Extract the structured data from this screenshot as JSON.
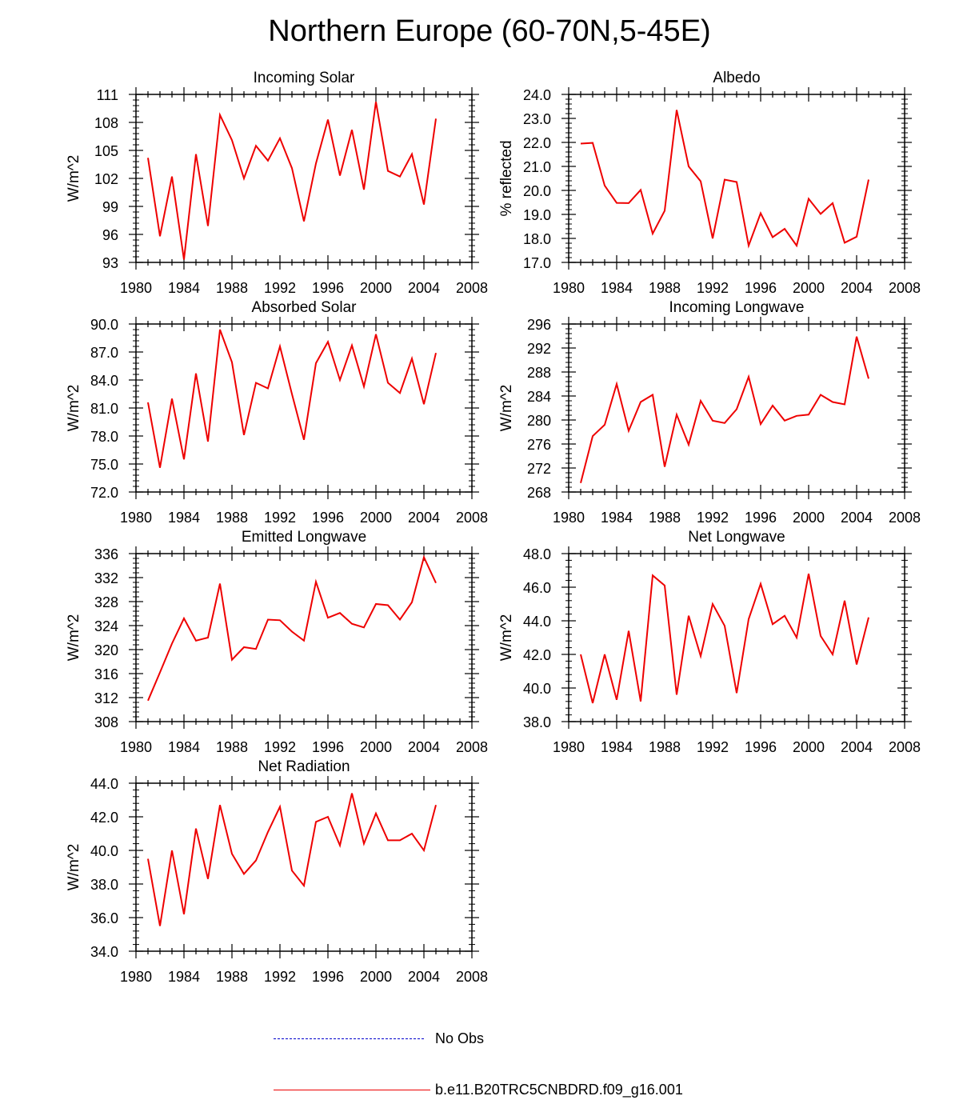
{
  "title": "Northern Europe (60-70N,5-45E)",
  "colors": {
    "model": "#ee0000",
    "obs": "#0000cc"
  },
  "legend": [
    {
      "label": "No Obs",
      "style": "dashed",
      "color": "#0000cc"
    },
    {
      "label": "b.e11.B20TRC5CNBDRD.f09_g16.001",
      "style": "solid",
      "color": "#ee0000"
    }
  ],
  "chart_data": [
    {
      "type": "line",
      "title": "Incoming Solar",
      "ylabel": "W/m^2",
      "xlim": [
        1980,
        2008
      ],
      "ylim": [
        93,
        111
      ],
      "xticks": [
        "1980",
        "1984",
        "1988",
        "1992",
        "1996",
        "2000",
        "2004",
        "2008"
      ],
      "yticks": [
        "93",
        "96",
        "99",
        "102",
        "105",
        "108",
        "111"
      ],
      "x": [
        1981,
        1982,
        1983,
        1984,
        1985,
        1986,
        1987,
        1988,
        1989,
        1990,
        1991,
        1992,
        1993,
        1994,
        1995,
        1996,
        1997,
        1998,
        1999,
        2000,
        2001,
        2002,
        2003,
        2004,
        2005
      ],
      "series": [
        {
          "color": "#ee0000",
          "values": [
            104.2,
            95.8,
            102.2,
            93.3,
            104.6,
            96.9,
            108.8,
            106.1,
            102.0,
            105.5,
            103.9,
            106.3,
            103.1,
            97.4,
            103.6,
            108.3,
            102.3,
            107.2,
            100.8,
            110.2,
            102.8,
            102.2,
            104.6,
            99.2,
            108.4
          ]
        }
      ]
    },
    {
      "type": "line",
      "title": "Albedo",
      "ylabel": "% reflected",
      "xlim": [
        1980,
        2008
      ],
      "ylim": [
        17,
        24
      ],
      "xticks": [
        "1980",
        "1984",
        "1988",
        "1992",
        "1996",
        "2000",
        "2004",
        "2008"
      ],
      "yticks": [
        "17.0",
        "18.0",
        "19.0",
        "20.0",
        "21.0",
        "22.0",
        "23.0",
        "24.0"
      ],
      "x": [
        1981,
        1982,
        1983,
        1984,
        1985,
        1986,
        1987,
        1988,
        1989,
        1990,
        1991,
        1992,
        1993,
        1994,
        1995,
        1996,
        1997,
        1998,
        1999,
        2000,
        2001,
        2002,
        2003,
        2004,
        2005
      ],
      "series": [
        {
          "color": "#ee0000",
          "values": [
            21.95,
            21.98,
            20.2,
            19.48,
            19.47,
            20.02,
            18.2,
            19.15,
            23.35,
            21.0,
            20.38,
            18.0,
            20.45,
            20.35,
            17.7,
            19.05,
            18.05,
            18.4,
            17.7,
            19.65,
            19.02,
            19.47,
            17.82,
            18.07,
            20.45
          ]
        }
      ]
    },
    {
      "type": "line",
      "title": "Absorbed Solar",
      "ylabel": "W/m^2",
      "xlim": [
        1980,
        2008
      ],
      "ylim": [
        72,
        90
      ],
      "xticks": [
        "1980",
        "1984",
        "1988",
        "1992",
        "1996",
        "2000",
        "2004",
        "2008"
      ],
      "yticks": [
        "72.0",
        "75.0",
        "78.0",
        "81.0",
        "84.0",
        "87.0",
        "90.0"
      ],
      "x": [
        1981,
        1982,
        1983,
        1984,
        1985,
        1986,
        1987,
        1988,
        1989,
        1990,
        1991,
        1992,
        1993,
        1994,
        1995,
        1996,
        1997,
        1998,
        1999,
        2000,
        2001,
        2002,
        2003,
        2004,
        2005
      ],
      "series": [
        {
          "color": "#ee0000",
          "values": [
            81.6,
            74.6,
            82.0,
            75.5,
            84.7,
            77.4,
            89.4,
            85.9,
            78.1,
            83.7,
            83.1,
            87.6,
            82.5,
            77.6,
            85.8,
            88.1,
            84.0,
            87.7,
            83.3,
            88.9,
            83.7,
            82.6,
            86.3,
            81.4,
            86.9
          ]
        }
      ]
    },
    {
      "type": "line",
      "title": "Incoming Longwave",
      "ylabel": "W/m^2",
      "xlim": [
        1980,
        2008
      ],
      "ylim": [
        268,
        296
      ],
      "xticks": [
        "1980",
        "1984",
        "1988",
        "1992",
        "1996",
        "2000",
        "2004",
        "2008"
      ],
      "yticks": [
        "268",
        "272",
        "276",
        "280",
        "284",
        "288",
        "292",
        "296"
      ],
      "x": [
        1981,
        1982,
        1983,
        1984,
        1985,
        1986,
        1987,
        1988,
        1989,
        1990,
        1991,
        1992,
        1993,
        1994,
        1995,
        1996,
        1997,
        1998,
        1999,
        2000,
        2001,
        2002,
        2003,
        2004,
        2005
      ],
      "series": [
        {
          "color": "#ee0000",
          "values": [
            269.5,
            277.3,
            279.2,
            286.0,
            278.2,
            283.0,
            284.2,
            272.2,
            280.9,
            275.9,
            283.2,
            279.9,
            279.5,
            281.8,
            287.2,
            279.3,
            282.4,
            279.9,
            280.7,
            280.9,
            284.2,
            283.0,
            282.6,
            293.9,
            286.9
          ]
        }
      ]
    },
    {
      "type": "line",
      "title": "Emitted Longwave",
      "ylabel": "W/m^2",
      "xlim": [
        1980,
        2008
      ],
      "ylim": [
        308,
        336
      ],
      "xticks": [
        "1980",
        "1984",
        "1988",
        "1992",
        "1996",
        "2000",
        "2004",
        "2008"
      ],
      "yticks": [
        "308",
        "312",
        "316",
        "320",
        "324",
        "328",
        "332",
        "336"
      ],
      "x": [
        1981,
        1982,
        1983,
        1984,
        1985,
        1986,
        1987,
        1988,
        1989,
        1990,
        1991,
        1992,
        1993,
        1994,
        1995,
        1996,
        1997,
        1998,
        1999,
        2000,
        2001,
        2002,
        2003,
        2004,
        2005
      ],
      "series": [
        {
          "color": "#ee0000",
          "values": [
            311.5,
            316.2,
            321.0,
            325.2,
            321.5,
            322.0,
            331.0,
            318.3,
            320.4,
            320.1,
            325.0,
            324.9,
            323.0,
            321.5,
            331.3,
            325.3,
            326.1,
            324.3,
            323.7,
            327.6,
            327.4,
            325.0,
            327.9,
            335.4,
            331.1
          ]
        }
      ]
    },
    {
      "type": "line",
      "title": "Net Longwave",
      "ylabel": "W/m^2",
      "xlim": [
        1980,
        2008
      ],
      "ylim": [
        38,
        48
      ],
      "xticks": [
        "1980",
        "1984",
        "1988",
        "1992",
        "1996",
        "2000",
        "2004",
        "2008"
      ],
      "yticks": [
        "38.0",
        "40.0",
        "42.0",
        "44.0",
        "46.0",
        "48.0"
      ],
      "x": [
        1981,
        1982,
        1983,
        1984,
        1985,
        1986,
        1987,
        1988,
        1989,
        1990,
        1991,
        1992,
        1993,
        1994,
        1995,
        1996,
        1997,
        1998,
        1999,
        2000,
        2001,
        2002,
        2003,
        2004,
        2005
      ],
      "series": [
        {
          "color": "#ee0000",
          "values": [
            42.0,
            39.1,
            42.0,
            39.3,
            43.4,
            39.2,
            46.7,
            46.1,
            39.6,
            44.3,
            41.9,
            45.0,
            43.7,
            39.7,
            44.1,
            46.2,
            43.8,
            44.3,
            43.0,
            46.8,
            43.1,
            42.0,
            45.2,
            41.4,
            44.2
          ]
        }
      ]
    },
    {
      "type": "line",
      "title": "Net Radiation",
      "ylabel": "W/m^2",
      "xlim": [
        1980,
        2008
      ],
      "ylim": [
        34,
        44
      ],
      "xticks": [
        "1980",
        "1984",
        "1988",
        "1992",
        "1996",
        "2000",
        "2004",
        "2008"
      ],
      "yticks": [
        "34.0",
        "36.0",
        "38.0",
        "40.0",
        "42.0",
        "44.0"
      ],
      "x": [
        1981,
        1982,
        1983,
        1984,
        1985,
        1986,
        1987,
        1988,
        1989,
        1990,
        1991,
        1992,
        1993,
        1994,
        1995,
        1996,
        1997,
        1998,
        1999,
        2000,
        2001,
        2002,
        2003,
        2004,
        2005
      ],
      "series": [
        {
          "color": "#ee0000",
          "values": [
            39.5,
            35.5,
            40.0,
            36.2,
            41.3,
            38.3,
            42.7,
            39.8,
            38.6,
            39.4,
            41.1,
            42.6,
            38.8,
            37.9,
            41.7,
            42.0,
            40.3,
            43.4,
            40.4,
            42.2,
            40.6,
            40.6,
            41.0,
            40.0,
            42.7
          ]
        }
      ]
    }
  ]
}
